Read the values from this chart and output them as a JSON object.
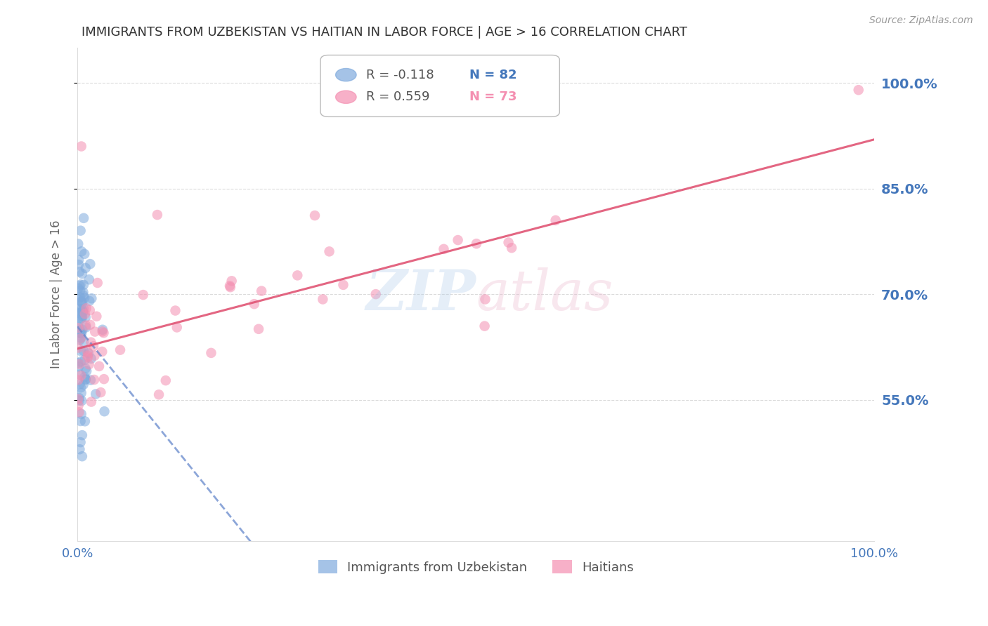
{
  "title": "IMMIGRANTS FROM UZBEKISTAN VS HAITIAN IN LABOR FORCE | AGE > 16 CORRELATION CHART",
  "source": "Source: ZipAtlas.com",
  "ylabel": "In Labor Force | Age > 16",
  "xlim": [
    0.0,
    1.0
  ],
  "ylim": [
    0.35,
    1.05
  ],
  "yticks": [
    0.55,
    0.7,
    0.85,
    1.0
  ],
  "ytick_labels": [
    "55.0%",
    "70.0%",
    "85.0%",
    "100.0%"
  ],
  "watermark_zip": "ZIP",
  "watermark_atlas": "atlas",
  "legend_uzbek": "Immigrants from Uzbekistan",
  "legend_haitian": "Haitians",
  "R_uzbek": -0.118,
  "N_uzbek": 82,
  "R_haitian": 0.559,
  "N_haitian": 73,
  "color_uzbek": "#7faadd",
  "color_haitian": "#f48fb1",
  "color_trendline_uzbek": "#6688cc",
  "color_trendline_haitian": "#e05575",
  "background_color": "#ffffff",
  "grid_color": "#cccccc",
  "axis_color": "#4477bb",
  "title_color": "#333333"
}
